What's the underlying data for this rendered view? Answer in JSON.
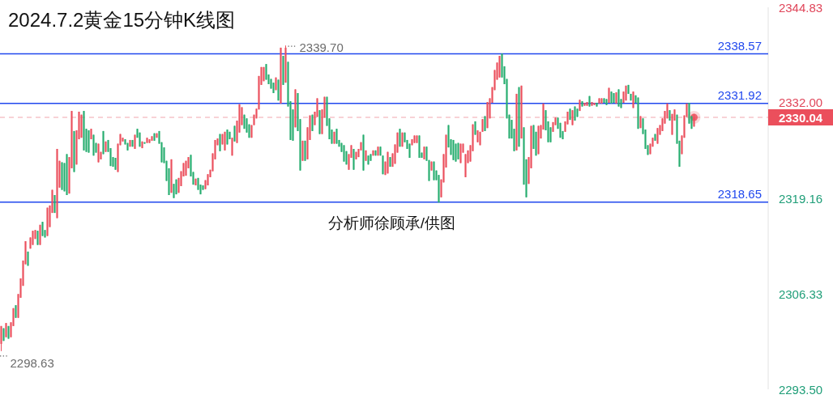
{
  "chart_data": {
    "type": "candlestick",
    "title": "2024.7.2黄金15分钟K线图",
    "categories": [
      null,
      null,
      null,
      null,
      null,
      null,
      null,
      null,
      null,
      null,
      null,
      null,
      null,
      null,
      null,
      null,
      null,
      null,
      null,
      null,
      null,
      null,
      null,
      null,
      null,
      null,
      null,
      null,
      null,
      null,
      null,
      null,
      null,
      null,
      null,
      null,
      null,
      null,
      null,
      null,
      null,
      null,
      null,
      null,
      null,
      null,
      null,
      null,
      null,
      null,
      null,
      null,
      null,
      null,
      null,
      null,
      null,
      null,
      null,
      null,
      null,
      null,
      null,
      null,
      null,
      null,
      null,
      null,
      null,
      null,
      null,
      null,
      null,
      null,
      null,
      null,
      null,
      null,
      null,
      null,
      null,
      null,
      null,
      null,
      null,
      null,
      null,
      null,
      null,
      null,
      null,
      null,
      null,
      null,
      null,
      null,
      null,
      null,
      null,
      null,
      null,
      null,
      null,
      null,
      null,
      null,
      null,
      null,
      null,
      null,
      null,
      null,
      null,
      null,
      null,
      null,
      null,
      null,
      null,
      null,
      null,
      null,
      null,
      null,
      null,
      null,
      null,
      null,
      null,
      null,
      null,
      null,
      null,
      null,
      null,
      null,
      null,
      null,
      null,
      null,
      null,
      null,
      null,
      null,
      null,
      null,
      null,
      null,
      null,
      null,
      null,
      null,
      null,
      null,
      null,
      null,
      null,
      null,
      null,
      null,
      null,
      null,
      null,
      null,
      null,
      null,
      null,
      null,
      null,
      null,
      null,
      null,
      null,
      null,
      null,
      null,
      null,
      null,
      null,
      null,
      null,
      null,
      null,
      null,
      null,
      null,
      null,
      null,
      null,
      null,
      null,
      null,
      null,
      null,
      null,
      null,
      null,
      null,
      null,
      null,
      null,
      null,
      null,
      null,
      null,
      null,
      null,
      null,
      null,
      null,
      null,
      null,
      null,
      null,
      null,
      null,
      null,
      null,
      null,
      null,
      null,
      null,
      null,
      null,
      null,
      null,
      null,
      null,
      null,
      null,
      null,
      null,
      null,
      null,
      null,
      null,
      null,
      null,
      null,
      null,
      null,
      null,
      null,
      null,
      null,
      null,
      null,
      null,
      null,
      null,
      null,
      null,
      null,
      null,
      null,
      null,
      null,
      null,
      null,
      null,
      null,
      null,
      null,
      null,
      null,
      null,
      null,
      null,
      null,
      null,
      null,
      null,
      null,
      null,
      null,
      null,
      null,
      null,
      null,
      null,
      null,
      null,
      null,
      null,
      null,
      null,
      null,
      null,
      null,
      null,
      null,
      null,
      null,
      null,
      null,
      null,
      null,
      null,
      null,
      null,
      null,
      null,
      null,
      null,
      null,
      null,
      null,
      null,
      null,
      null,
      null,
      null,
      null,
      null,
      null,
      null
    ],
    "ohlc": [
      [
        2299.6,
        2302.0,
        2298.63,
        2302.0
      ],
      [
        2301.7,
        2301.7,
        2300.0,
        2300.0
      ],
      [
        2300.5,
        2302.4,
        2300.5,
        2302.4
      ],
      [
        2302.0,
        2302.0,
        2300.3,
        2300.3
      ],
      [
        2300.5,
        2302.5,
        2300.5,
        2302.5
      ],
      [
        2302.0,
        2304.4,
        2302.0,
        2304.4
      ],
      [
        2304.8,
        2304.8,
        2303.1,
        2303.1
      ],
      [
        2303.1,
        2306.3,
        2303.1,
        2306.3
      ],
      [
        2305.8,
        2308.4,
        2305.8,
        2308.4
      ],
      [
        2307.4,
        2310.8,
        2307.4,
        2310.8
      ],
      [
        2310.3,
        2313.4,
        2310.3,
        2313.4
      ],
      [
        2312.0,
        2312.0,
        2310.1,
        2310.1
      ],
      [
        2312.4,
        2313.9,
        2312.4,
        2313.9
      ],
      [
        2312.9,
        2314.8,
        2312.9,
        2314.8
      ],
      [
        2313.7,
        2314.9,
        2313.7,
        2314.9
      ],
      [
        2314.8,
        2314.8,
        2312.9,
        2312.9
      ],
      [
        2312.9,
        2315.6,
        2312.9,
        2315.6
      ],
      [
        2316.0,
        2316.0,
        2314.1,
        2314.1
      ],
      [
        2314.9,
        2314.9,
        2313.9,
        2313.9
      ],
      [
        2314.1,
        2317.9,
        2314.1,
        2317.9
      ],
      [
        2315.3,
        2318.2,
        2315.3,
        2318.2
      ],
      [
        2317.2,
        2320.3,
        2317.2,
        2320.3
      ],
      [
        2319.6,
        2319.6,
        2317.2,
        2317.2
      ],
      [
        2316.5,
        2325.8,
        2316.5,
        2325.8
      ],
      [
        2320.6,
        2324.2,
        2320.6,
        2324.2
      ],
      [
        2324.0,
        2324.0,
        2320.3,
        2320.3
      ],
      [
        2323.9,
        2323.9,
        2320.1,
        2320.1
      ],
      [
        2325.1,
        2325.1,
        2319.6,
        2319.6
      ],
      [
        2319.8,
        2324.7,
        2319.8,
        2324.7
      ],
      [
        2323.2,
        2330.9,
        2323.2,
        2330.9
      ],
      [
        2328.2,
        2328.2,
        2322.7,
        2322.7
      ],
      [
        2323.7,
        2328.3,
        2323.7,
        2328.3
      ],
      [
        2327.1,
        2330.8,
        2327.1,
        2330.8
      ],
      [
        2327.3,
        2330.4,
        2327.3,
        2330.4
      ],
      [
        2330.9,
        2330.9,
        2325.6,
        2325.6
      ],
      [
        2328.5,
        2328.5,
        2325.4,
        2325.4
      ],
      [
        2328.3,
        2328.3,
        2325.3,
        2325.3
      ],
      [
        2327.1,
        2328.5,
        2327.1,
        2328.5
      ],
      [
        2327.7,
        2327.7,
        2324.9,
        2324.9
      ],
      [
        2326.6,
        2326.6,
        2325.3,
        2325.3
      ],
      [
        2324.0,
        2326.5,
        2324.0,
        2326.5
      ],
      [
        2324.4,
        2325.4,
        2324.4,
        2325.4
      ],
      [
        2328.2,
        2328.2,
        2325.1,
        2325.1
      ],
      [
        2325.4,
        2326.8,
        2325.4,
        2326.8
      ],
      [
        2327.0,
        2327.0,
        2325.4,
        2325.4
      ],
      [
        2325.9,
        2325.9,
        2323.5,
        2323.5
      ],
      [
        2324.7,
        2324.7,
        2323.4,
        2323.4
      ],
      [
        2324.6,
        2324.6,
        2323.0,
        2323.0
      ],
      [
        2322.7,
        2326.5,
        2322.7,
        2326.5
      ],
      [
        2326.3,
        2327.8,
        2326.3,
        2327.8
      ],
      [
        2326.8,
        2327.3,
        2326.8,
        2327.3
      ],
      [
        2327.1,
        2327.1,
        2326.4,
        2326.4
      ],
      [
        2326.6,
        2326.6,
        2325.6,
        2325.6
      ],
      [
        2326.1,
        2327.0,
        2326.1,
        2327.0
      ],
      [
        2327.0,
        2327.0,
        2326.1,
        2326.1
      ],
      [
        2325.8,
        2327.7,
        2325.8,
        2327.7
      ],
      [
        2328.5,
        2328.5,
        2327.3,
        2327.3
      ],
      [
        2328.0,
        2328.0,
        2326.1,
        2326.1
      ],
      [
        2325.9,
        2326.8,
        2325.9,
        2326.8
      ],
      [
        2326.7,
        2326.7,
        2326.5,
        2326.5
      ],
      [
        2326.6,
        2327.3,
        2326.6,
        2327.3
      ],
      [
        2326.6,
        2327.1,
        2326.6,
        2327.1
      ],
      [
        2326.9,
        2327.5,
        2326.9,
        2327.5
      ],
      [
        2327.9,
        2327.9,
        2326.9,
        2326.9
      ],
      [
        2327.3,
        2327.9,
        2327.3,
        2327.9
      ],
      [
        2328.2,
        2328.2,
        2326.5,
        2326.5
      ],
      [
        2326.7,
        2326.7,
        2324.0,
        2324.0
      ],
      [
        2326.0,
        2326.0,
        2323.9,
        2323.9
      ],
      [
        2324.2,
        2324.2,
        2321.5,
        2321.5
      ],
      [
        2323.2,
        2323.2,
        2319.6,
        2319.6
      ],
      [
        2319.9,
        2324.4,
        2319.9,
        2324.4
      ],
      [
        2321.1,
        2321.1,
        2319.2,
        2319.2
      ],
      [
        2321.7,
        2321.7,
        2319.7,
        2319.7
      ],
      [
        2319.9,
        2321.9,
        2319.9,
        2321.9
      ],
      [
        2320.8,
        2322.8,
        2320.8,
        2322.8
      ],
      [
        2322.1,
        2323.9,
        2322.1,
        2323.9
      ],
      [
        2322.2,
        2324.2,
        2322.2,
        2324.2
      ],
      [
        2323.2,
        2324.7,
        2323.2,
        2324.7
      ],
      [
        2325.0,
        2325.0,
        2322.1,
        2322.1
      ],
      [
        2322.7,
        2322.7,
        2321.0,
        2321.0
      ],
      [
        2320.9,
        2321.8,
        2320.9,
        2321.8
      ],
      [
        2321.9,
        2321.9,
        2320.3,
        2320.3
      ],
      [
        2321.0,
        2321.0,
        2319.7,
        2319.7
      ],
      [
        2320.9,
        2320.9,
        2320.3,
        2320.3
      ],
      [
        2320.4,
        2321.6,
        2320.4,
        2321.6
      ],
      [
        2320.9,
        2322.4,
        2320.9,
        2322.4
      ],
      [
        2322.0,
        2323.0,
        2322.0,
        2323.0
      ],
      [
        2322.8,
        2325.2,
        2322.8,
        2325.2
      ],
      [
        2324.4,
        2327.0,
        2324.4,
        2327.0
      ],
      [
        2326.3,
        2327.2,
        2326.3,
        2327.2
      ],
      [
        2327.8,
        2327.8,
        2325.5,
        2325.5
      ],
      [
        2326.4,
        2327.8,
        2326.4,
        2327.8
      ],
      [
        2325.6,
        2328.1,
        2325.6,
        2328.1
      ],
      [
        2328.4,
        2328.4,
        2326.4,
        2326.4
      ],
      [
        2328.1,
        2328.1,
        2327.1,
        2327.1
      ],
      [
        2324.9,
        2327.3,
        2324.9,
        2327.3
      ],
      [
        2328.9,
        2328.9,
        2326.8,
        2326.8
      ],
      [
        2326.6,
        2329.6,
        2326.6,
        2329.6
      ],
      [
        2328.0,
        2331.8,
        2328.0,
        2331.8
      ],
      [
        2329.0,
        2331.4,
        2329.0,
        2331.4
      ],
      [
        2330.4,
        2330.4,
        2328.5,
        2328.5
      ],
      [
        2329.9,
        2329.9,
        2328.0,
        2328.0
      ],
      [
        2329.1,
        2329.1,
        2327.3,
        2327.3
      ],
      [
        2327.3,
        2329.0,
        2327.3,
        2329.0
      ],
      [
        2329.0,
        2330.4,
        2329.0,
        2330.4
      ],
      [
        2329.9,
        2331.2,
        2329.9,
        2331.2
      ],
      [
        2331.1,
        2335.6,
        2331.1,
        2335.6
      ],
      [
        2334.4,
        2336.8,
        2334.4,
        2336.8
      ],
      [
        2334.9,
        2336.8,
        2334.9,
        2336.8
      ],
      [
        2337.2,
        2337.2,
        2335.1,
        2335.1
      ],
      [
        2335.8,
        2335.8,
        2334.5,
        2334.5
      ],
      [
        2335.2,
        2335.2,
        2333.9,
        2333.9
      ],
      [
        2334.7,
        2334.7,
        2333.3,
        2333.3
      ],
      [
        2333.7,
        2335.4,
        2333.7,
        2335.4
      ],
      [
        2335.1,
        2335.1,
        2332.3,
        2332.3
      ],
      [
        2331.9,
        2339.4,
        2331.9,
        2339.4
      ],
      [
        2338.3,
        2338.3,
        2334.4,
        2334.4
      ],
      [
        2334.7,
        2339.7,
        2334.7,
        2339.4
      ],
      [
        2337.5,
        2337.5,
        2331.5,
        2331.5
      ],
      [
        2332.2,
        2332.2,
        2327.0,
        2327.0
      ],
      [
        2331.1,
        2331.1,
        2326.9,
        2326.9
      ],
      [
        2328.7,
        2333.8,
        2328.7,
        2333.8
      ],
      [
        2333.3,
        2333.3,
        2328.2,
        2328.2
      ],
      [
        2329.8,
        2329.8,
        2322.9,
        2322.9
      ],
      [
        2324.2,
        2326.9,
        2324.2,
        2326.9
      ],
      [
        2326.9,
        2326.9,
        2324.2,
        2324.2
      ],
      [
        2324.4,
        2328.7,
        2324.4,
        2328.7
      ],
      [
        2327.0,
        2330.3,
        2327.0,
        2330.3
      ],
      [
        2330.4,
        2330.4,
        2328.2,
        2328.2
      ],
      [
        2329.0,
        2330.8,
        2329.0,
        2330.8
      ],
      [
        2330.1,
        2332.6,
        2330.1,
        2332.6
      ],
      [
        2331.0,
        2331.0,
        2327.8,
        2327.8
      ],
      [
        2327.8,
        2331.1,
        2327.8,
        2331.1
      ],
      [
        2330.0,
        2332.8,
        2330.0,
        2332.8
      ],
      [
        2332.8,
        2332.8,
        2328.9,
        2328.9
      ],
      [
        2329.9,
        2329.9,
        2327.1,
        2327.1
      ],
      [
        2328.4,
        2328.4,
        2326.5,
        2326.5
      ],
      [
        2326.5,
        2328.1,
        2326.5,
        2328.1
      ],
      [
        2328.5,
        2328.5,
        2326.5,
        2326.5
      ],
      [
        2327.0,
        2327.0,
        2326.1,
        2326.1
      ],
      [
        2326.6,
        2326.6,
        2325.4,
        2325.4
      ],
      [
        2326.3,
        2326.3,
        2324.1,
        2324.1
      ],
      [
        2325.5,
        2325.5,
        2323.7,
        2323.7
      ],
      [
        2323.0,
        2325.1,
        2323.0,
        2325.1
      ],
      [
        2324.6,
        2326.3,
        2324.6,
        2326.3
      ],
      [
        2325.8,
        2325.8,
        2323.0,
        2323.0
      ],
      [
        2324.4,
        2325.4,
        2324.4,
        2325.4
      ],
      [
        2324.7,
        2325.8,
        2324.7,
        2325.8
      ],
      [
        2325.6,
        2326.7,
        2325.6,
        2326.7
      ],
      [
        2327.7,
        2327.7,
        2322.9,
        2322.9
      ],
      [
        2324.2,
        2325.6,
        2324.2,
        2325.6
      ],
      [
        2324.9,
        2324.9,
        2323.7,
        2323.7
      ],
      [
        2325.1,
        2325.1,
        2324.2,
        2324.2
      ],
      [
        2324.9,
        2325.6,
        2324.9,
        2325.6
      ],
      [
        2325.6,
        2325.6,
        2324.9,
        2324.9
      ],
      [
        2324.9,
        2326.1,
        2324.9,
        2326.1
      ],
      [
        2326.1,
        2326.1,
        2324.9,
        2324.9
      ],
      [
        2324.9,
        2324.9,
        2322.4,
        2322.4
      ],
      [
        2322.3,
        2324.1,
        2322.3,
        2324.1
      ],
      [
        2322.5,
        2325.4,
        2322.5,
        2325.4
      ],
      [
        2324.7,
        2324.7,
        2323.4,
        2323.4
      ],
      [
        2323.4,
        2325.2,
        2323.4,
        2325.2
      ],
      [
        2323.8,
        2326.4,
        2323.8,
        2326.4
      ],
      [
        2325.3,
        2328.0,
        2325.3,
        2328.0
      ],
      [
        2328.5,
        2328.5,
        2326.1,
        2326.1
      ],
      [
        2326.1,
        2328.0,
        2326.1,
        2328.0
      ],
      [
        2328.0,
        2328.0,
        2326.7,
        2326.7
      ],
      [
        2327.0,
        2327.0,
        2325.8,
        2325.8
      ],
      [
        2326.5,
        2326.5,
        2324.6,
        2324.6
      ],
      [
        2326.3,
        2327.1,
        2326.3,
        2327.1
      ],
      [
        2326.6,
        2327.6,
        2326.6,
        2327.6
      ],
      [
        2326.6,
        2327.6,
        2326.6,
        2327.6
      ],
      [
        2327.6,
        2327.6,
        2324.6,
        2324.6
      ],
      [
        2325.3,
        2325.3,
        2324.6,
        2324.6
      ],
      [
        2324.4,
        2326.1,
        2324.4,
        2326.1
      ],
      [
        2326.1,
        2326.1,
        2324.2,
        2324.2
      ],
      [
        2324.3,
        2324.3,
        2321.5,
        2321.5
      ],
      [
        2322.9,
        2324.1,
        2322.9,
        2324.1
      ],
      [
        2324.1,
        2324.1,
        2321.6,
        2321.6
      ],
      [
        2322.9,
        2322.9,
        2321.6,
        2321.6
      ],
      [
        2322.3,
        2322.3,
        2318.6,
        2318.6
      ],
      [
        2319.3,
        2321.7,
        2319.3,
        2321.7
      ],
      [
        2321.3,
        2325.1,
        2321.3,
        2325.1
      ],
      [
        2323.3,
        2327.7,
        2323.3,
        2327.7
      ],
      [
        2329.0,
        2329.0,
        2326.0,
        2326.0
      ],
      [
        2327.1,
        2327.1,
        2325.0,
        2325.0
      ],
      [
        2327.0,
        2327.0,
        2324.3,
        2324.3
      ],
      [
        2326.5,
        2326.5,
        2324.1,
        2324.1
      ],
      [
        2326.6,
        2326.6,
        2324.4,
        2324.4
      ],
      [
        2323.9,
        2326.5,
        2323.9,
        2326.5
      ],
      [
        2325.3,
        2326.5,
        2325.3,
        2326.5
      ],
      [
        2322.0,
        2325.1,
        2322.0,
        2325.1
      ],
      [
        2323.9,
        2325.6,
        2323.9,
        2325.6
      ],
      [
        2324.1,
        2326.3,
        2324.1,
        2326.3
      ],
      [
        2325.5,
        2329.1,
        2325.5,
        2329.1
      ],
      [
        2329.5,
        2329.5,
        2327.7,
        2327.7
      ],
      [
        2326.7,
        2328.3,
        2326.7,
        2328.3
      ],
      [
        2326.3,
        2328.1,
        2326.3,
        2328.1
      ],
      [
        2328.1,
        2329.8,
        2328.1,
        2329.8
      ],
      [
        2330.2,
        2330.2,
        2328.2,
        2328.2
      ],
      [
        2328.6,
        2332.1,
        2328.6,
        2332.1
      ],
      [
        2329.9,
        2332.6,
        2329.9,
        2332.6
      ],
      [
        2332.0,
        2334.1,
        2332.0,
        2334.1
      ],
      [
        2333.7,
        2336.4,
        2333.7,
        2336.4
      ],
      [
        2335.1,
        2337.4,
        2335.1,
        2337.4
      ],
      [
        2335.4,
        2338.3,
        2335.4,
        2338.3
      ],
      [
        2338.6,
        2338.6,
        2335.4,
        2335.4
      ],
      [
        2336.9,
        2336.9,
        2334.5,
        2334.5
      ],
      [
        2335.2,
        2335.2,
        2329.9,
        2329.9
      ],
      [
        2330.4,
        2330.4,
        2327.2,
        2327.2
      ],
      [
        2329.7,
        2329.7,
        2327.2,
        2327.2
      ],
      [
        2328.5,
        2328.5,
        2325.5,
        2325.5
      ],
      [
        2325.6,
        2333.2,
        2325.6,
        2333.2
      ],
      [
        2334.1,
        2334.1,
        2326.1,
        2326.1
      ],
      [
        2327.2,
        2334.3,
        2327.2,
        2334.3
      ],
      [
        2328.7,
        2328.7,
        2321.0,
        2321.0
      ],
      [
        2324.4,
        2324.4,
        2319.3,
        2319.3
      ],
      [
        2321.1,
        2324.7,
        2321.1,
        2324.7
      ],
      [
        2323.2,
        2328.9,
        2323.2,
        2328.9
      ],
      [
        2329.0,
        2329.0,
        2325.8,
        2325.8
      ],
      [
        2328.1,
        2328.1,
        2324.9,
        2324.9
      ],
      [
        2325.1,
        2328.9,
        2325.1,
        2328.9
      ],
      [
        2327.2,
        2329.0,
        2327.2,
        2329.0
      ],
      [
        2328.4,
        2331.9,
        2328.4,
        2331.9
      ],
      [
        2331.0,
        2331.0,
        2328.3,
        2328.3
      ],
      [
        2329.5,
        2329.5,
        2326.7,
        2326.7
      ],
      [
        2328.7,
        2328.7,
        2326.7,
        2326.7
      ],
      [
        2328.1,
        2329.4,
        2328.1,
        2329.4
      ],
      [
        2329.0,
        2330.0,
        2329.0,
        2330.0
      ],
      [
        2330.0,
        2330.0,
        2328.5,
        2328.5
      ],
      [
        2329.3,
        2329.3,
        2327.3,
        2327.3
      ],
      [
        2328.2,
        2328.2,
        2327.1,
        2327.1
      ],
      [
        2328.1,
        2329.5,
        2328.1,
        2329.5
      ],
      [
        2329.1,
        2330.8,
        2329.1,
        2330.8
      ],
      [
        2331.2,
        2331.2,
        2329.7,
        2329.7
      ],
      [
        2329.0,
        2331.0,
        2329.0,
        2331.0
      ],
      [
        2331.5,
        2331.5,
        2329.6,
        2329.6
      ],
      [
        2331.2,
        2331.2,
        2330.1,
        2330.1
      ],
      [
        2330.9,
        2332.4,
        2330.9,
        2332.4
      ],
      [
        2332.2,
        2332.2,
        2331.5,
        2331.5
      ],
      [
        2331.6,
        2332.0,
        2331.6,
        2332.0
      ],
      [
        2331.6,
        2332.1,
        2331.6,
        2332.1
      ],
      [
        2332.9,
        2332.9,
        2331.5,
        2331.5
      ],
      [
        2331.6,
        2332.1,
        2331.6,
        2332.1
      ],
      [
        2331.7,
        2332.0,
        2331.7,
        2332.0
      ],
      [
        2332.0,
        2332.0,
        2331.5,
        2331.5
      ],
      [
        2331.9,
        2332.6,
        2331.9,
        2332.6
      ],
      [
        2331.9,
        2332.6,
        2331.9,
        2332.6
      ],
      [
        2332.6,
        2332.6,
        2332.0,
        2332.0
      ],
      [
        2332.5,
        2332.5,
        2331.7,
        2331.7
      ],
      [
        2332.0,
        2334.0,
        2332.0,
        2334.0
      ],
      [
        2333.5,
        2333.5,
        2331.9,
        2331.9
      ],
      [
        2333.3,
        2333.3,
        2332.0,
        2332.0
      ],
      [
        2331.9,
        2333.4,
        2331.9,
        2333.4
      ],
      [
        2333.8,
        2333.8,
        2331.5,
        2331.5
      ],
      [
        2332.5,
        2332.5,
        2331.3,
        2331.3
      ],
      [
        2332.0,
        2333.5,
        2332.0,
        2333.5
      ],
      [
        2332.3,
        2334.3,
        2332.3,
        2334.3
      ],
      [
        2334.4,
        2334.4,
        2333.2,
        2333.2
      ],
      [
        2333.2,
        2333.2,
        2332.3,
        2332.3
      ],
      [
        2331.3,
        2333.5,
        2331.3,
        2333.5
      ],
      [
        2333.0,
        2333.0,
        2332.0,
        2332.0
      ],
      [
        2332.7,
        2332.7,
        2328.5,
        2328.5
      ],
      [
        2328.6,
        2330.2,
        2328.6,
        2330.2
      ],
      [
        2329.9,
        2329.9,
        2327.8,
        2327.8
      ],
      [
        2328.4,
        2328.4,
        2325.8,
        2325.8
      ],
      [
        2326.3,
        2326.3,
        2325.0,
        2325.0
      ],
      [
        2325.1,
        2326.5,
        2325.1,
        2326.5
      ],
      [
        2326.1,
        2327.3,
        2326.1,
        2327.3
      ],
      [
        2327.8,
        2327.8,
        2326.9,
        2326.9
      ],
      [
        2326.5,
        2328.6,
        2326.5,
        2328.6
      ],
      [
        2327.7,
        2329.0,
        2327.7,
        2329.0
      ],
      [
        2328.2,
        2329.9,
        2328.2,
        2329.9
      ],
      [
        2329.2,
        2330.9,
        2329.2,
        2330.9
      ],
      [
        2329.9,
        2331.9,
        2329.9,
        2331.9
      ],
      [
        2331.0,
        2331.0,
        2329.6,
        2329.6
      ],
      [
        2327.7,
        2330.5,
        2327.7,
        2330.5
      ],
      [
        2329.6,
        2331.1,
        2329.6,
        2331.1
      ],
      [
        2330.4,
        2330.4,
        2326.5,
        2326.5
      ],
      [
        2326.9,
        2326.9,
        2323.4,
        2323.4
      ],
      [
        2325.1,
        2327.6,
        2325.1,
        2327.6
      ],
      [
        2327.3,
        2330.3,
        2327.3,
        2330.3
      ],
      [
        2330.1,
        2331.9,
        2330.1,
        2331.9
      ],
      [
        2332.0,
        2332.0,
        2329.2,
        2329.2
      ],
      [
        2330.2,
        2330.2,
        2328.5,
        2328.5
      ],
      [
        2328.8,
        2330.5,
        2328.8,
        2330.04
      ],
      null,
      null,
      null,
      null,
      null,
      null,
      null,
      null,
      null,
      null,
      null,
      null,
      null,
      null,
      null,
      null,
      null,
      null,
      null,
      null,
      null,
      null,
      null,
      null,
      null,
      null,
      null,
      null,
      null,
      null
    ],
    "ylim": [
      2293.5,
      2344.83
    ],
    "yticks": [
      2344.83,
      {
        "value": 2332,
        "label": "2332.00"
      },
      2319.16,
      2306.33,
      {
        "value": 2293.5,
        "label": "2293.50"
      }
    ],
    "ref_lines": [
      {
        "axis": "y",
        "value": 2338.57,
        "label": "2338.57",
        "color": "#2048ee"
      },
      {
        "axis": "y",
        "value": 2331.92,
        "label": "2331.92",
        "color": "#2048ee"
      },
      {
        "axis": "y",
        "value": 2318.65,
        "label": "2318.65",
        "color": "#2048ee"
      },
      {
        "axis": "y",
        "value": 2330.04,
        "label": "2330.04",
        "color": "#f2a6ad",
        "line_style": "dashed"
      }
    ],
    "annotations": [
      "2339.70",
      "2298.63",
      "分析师徐顾承/供图"
    ]
  }
}
